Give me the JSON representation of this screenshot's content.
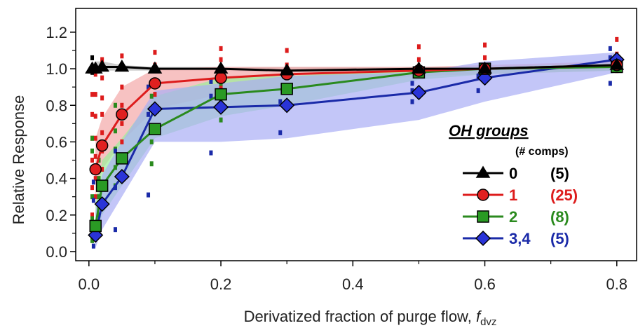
{
  "chart_data": {
    "type": "line",
    "ylabel": "Relative Response",
    "xlabel_main": "Derivatized fraction of purge flow, ",
    "xlabel_symbol": "f",
    "xlabel_sub": "dvz",
    "xlim": [
      -0.02,
      0.83
    ],
    "ylim": [
      -0.05,
      1.33
    ],
    "xticks": [
      0.0,
      0.2,
      0.4,
      0.6,
      0.8
    ],
    "xtick_labels": [
      "0.0",
      "0.2",
      "0.4",
      "0.6",
      "0.8"
    ],
    "yticks": [
      0.0,
      0.2,
      0.4,
      0.6,
      0.8,
      1.0,
      1.2
    ],
    "ytick_labels": [
      "0.0",
      "0.2",
      "0.4",
      "0.6",
      "0.8",
      "1.0",
      "1.2"
    ],
    "grid": false,
    "legend": {
      "title": "OH groups",
      "subtitle": "(# comps)",
      "placement": "right"
    },
    "series": [
      {
        "label": "0",
        "count": "(5)",
        "color": "#000000",
        "band": "#b8b8b8",
        "marker": "triangle",
        "x": [
          0.005,
          0.01,
          0.02,
          0.05,
          0.1,
          0.2,
          0.3,
          0.5,
          0.6,
          0.8
        ],
        "y": [
          1.0,
          1.0,
          1.01,
          1.01,
          1.0,
          1.0,
          0.99,
          1.0,
          1.0,
          1.02
        ],
        "band_lower": [
          0.99,
          0.99,
          0.99,
          0.99,
          0.99,
          0.99,
          0.98,
          0.99,
          0.99,
          1.0
        ],
        "band_upper": [
          1.03,
          1.04,
          1.04,
          1.02,
          1.01,
          1.01,
          1.01,
          1.01,
          1.01,
          1.03
        ]
      },
      {
        "label": "1",
        "count": "(25)",
        "color": "#dd1c1c",
        "band": "#f4a8a8",
        "marker": "circle",
        "x": [
          0.01,
          0.02,
          0.05,
          0.1,
          0.2,
          0.3,
          0.5,
          0.6,
          0.8
        ],
        "y": [
          0.45,
          0.58,
          0.75,
          0.92,
          0.95,
          0.97,
          0.99,
          1.0,
          1.02
        ],
        "band_lower": [
          0.3,
          0.45,
          0.6,
          0.78,
          0.86,
          0.9,
          0.96,
          0.97,
          0.99
        ],
        "band_upper": [
          0.62,
          0.73,
          0.9,
          1.0,
          1.01,
          1.01,
          1.01,
          1.02,
          1.04
        ]
      },
      {
        "label": "2",
        "count": "(8)",
        "color": "#2a8a1e",
        "band": "#9af09a",
        "marker": "square",
        "x": [
          0.01,
          0.02,
          0.05,
          0.1,
          0.2,
          0.3,
          0.5,
          0.6,
          0.8
        ],
        "y": [
          0.14,
          0.36,
          0.51,
          0.67,
          0.86,
          0.89,
          0.98,
          1.0,
          1.01
        ],
        "band_lower": [
          0.06,
          0.2,
          0.36,
          0.62,
          0.74,
          0.8,
          0.94,
          0.97,
          0.99
        ],
        "band_upper": [
          0.26,
          0.5,
          0.62,
          0.85,
          0.95,
          0.96,
          1.0,
          1.01,
          1.03
        ]
      },
      {
        "label": "3,4",
        "count": "(5)",
        "color": "#1a2aa8",
        "band": "#a9aef5",
        "marker": "diamond",
        "x": [
          0.01,
          0.02,
          0.05,
          0.1,
          0.2,
          0.3,
          0.5,
          0.6,
          0.8
        ],
        "y": [
          0.09,
          0.26,
          0.41,
          0.78,
          0.79,
          0.8,
          0.87,
          0.95,
          1.05
        ],
        "band_lower": [
          0.02,
          0.12,
          0.3,
          0.6,
          0.6,
          0.62,
          0.72,
          0.82,
          0.98
        ],
        "band_upper": [
          0.22,
          0.42,
          0.6,
          0.88,
          0.92,
          0.96,
          0.98,
          1.04,
          1.09
        ]
      }
    ],
    "scatter_points": [
      {
        "series": 1,
        "x": 0.005,
        "y": [
          0.2,
          0.35,
          0.5,
          0.62,
          0.75,
          0.86
        ]
      },
      {
        "series": 1,
        "x": 0.01,
        "y": [
          0.3,
          0.4,
          0.52,
          0.62,
          0.74,
          0.86,
          0.97
        ]
      },
      {
        "series": 1,
        "x": 0.02,
        "y": [
          0.45,
          0.55,
          0.65,
          0.75,
          0.84,
          0.95,
          1.05
        ]
      },
      {
        "series": 1,
        "x": 0.05,
        "y": [
          0.6,
          0.7,
          0.8,
          0.9,
          1.0,
          1.07
        ]
      },
      {
        "series": 1,
        "x": 0.1,
        "y": [
          0.86,
          0.93,
          1.02,
          1.09
        ]
      },
      {
        "series": 1,
        "x": 0.2,
        "y": [
          0.9,
          0.98,
          1.05,
          1.11
        ]
      },
      {
        "series": 1,
        "x": 0.3,
        "y": [
          0.95,
          1.02,
          1.1
        ]
      },
      {
        "series": 1,
        "x": 0.5,
        "y": [
          0.98,
          1.05,
          1.12
        ]
      },
      {
        "series": 1,
        "x": 0.6,
        "y": [
          0.97,
          1.06,
          1.13
        ]
      },
      {
        "series": 1,
        "x": 0.8,
        "y": [
          0.99,
          1.08,
          1.16
        ]
      },
      {
        "series": 2,
        "x": 0.005,
        "y": [
          0.06,
          0.18,
          0.3,
          0.45,
          0.55,
          0.62
        ]
      },
      {
        "series": 2,
        "x": 0.015,
        "y": [
          0.2,
          0.3,
          0.4,
          0.5
        ]
      },
      {
        "series": 2,
        "x": 0.04,
        "y": [
          0.36,
          0.46,
          0.56,
          0.66,
          0.8
        ]
      },
      {
        "series": 2,
        "x": 0.095,
        "y": [
          0.48,
          0.6,
          0.68,
          0.85
        ]
      },
      {
        "series": 2,
        "x": 0.2,
        "y": [
          0.72,
          0.82,
          0.92
        ]
      },
      {
        "series": 2,
        "x": 0.3,
        "y": [
          0.82,
          0.9
        ]
      },
      {
        "series": 3,
        "x": 0.007,
        "y": [
          0.03,
          0.1,
          0.28,
          0.38
        ]
      },
      {
        "series": 3,
        "x": 0.04,
        "y": [
          0.12,
          0.35,
          0.55
        ]
      },
      {
        "series": 3,
        "x": 0.09,
        "y": [
          0.31,
          0.75,
          0.9
        ]
      },
      {
        "series": 3,
        "x": 0.185,
        "y": [
          0.54,
          0.85,
          0.93
        ]
      },
      {
        "series": 3,
        "x": 0.29,
        "y": [
          0.65,
          0.82
        ]
      },
      {
        "series": 3,
        "x": 0.49,
        "y": [
          0.82,
          0.88,
          0.92
        ]
      },
      {
        "series": 3,
        "x": 0.59,
        "y": [
          0.88,
          0.96
        ]
      },
      {
        "series": 3,
        "x": 0.79,
        "y": [
          0.92,
          1.06,
          1.11
        ]
      },
      {
        "series": 0,
        "x": 0.005,
        "y": [
          0.98,
          1.06
        ]
      },
      {
        "series": 0,
        "x": 0.8,
        "y": [
          1.0,
          1.05
        ]
      }
    ]
  }
}
